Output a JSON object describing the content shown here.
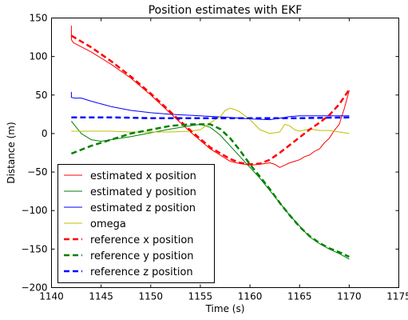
{
  "chart_data": {
    "type": "line",
    "title": "Position estimates with EKF",
    "xlabel": "Time (s)",
    "ylabel": "Distance (m)",
    "xlim": [
      1140,
      1175
    ],
    "ylim": [
      -200,
      150
    ],
    "xticks": [
      1140,
      1145,
      1150,
      1155,
      1160,
      1165,
      1170,
      1175
    ],
    "yticks": [
      -200,
      -150,
      -100,
      -50,
      0,
      50,
      100,
      150
    ],
    "xtick_labels": [
      "1140",
      "1145",
      "1150",
      "1155",
      "1160",
      "1165",
      "1170",
      "1175"
    ],
    "ytick_labels": [
      "−200",
      "−150",
      "−100",
      "−50",
      "0",
      "50",
      "100",
      "150"
    ],
    "grid": false,
    "legend_position": "bottom-left",
    "series": [
      {
        "name": "estimated x position",
        "color": "#ff0000",
        "dash": "solid",
        "x": [
          1142,
          1142,
          1142.2,
          1144,
          1146,
          1148,
          1150,
          1152,
          1154,
          1156,
          1158,
          1159,
          1160,
          1161,
          1162,
          1162.5,
          1163,
          1163.5,
          1164,
          1164.5,
          1165,
          1165.5,
          1166,
          1166.5,
          1167,
          1167.5,
          1168,
          1168.5,
          1169,
          1169.5,
          1170
        ],
        "y": [
          140,
          122,
          118,
          106,
          90,
          72,
          50,
          26,
          2,
          -20,
          -36,
          -39,
          -41,
          -40,
          -38,
          -40,
          -44,
          -41,
          -38,
          -36,
          -34,
          -30,
          -28,
          -23,
          -20,
          -12,
          -6,
          4,
          12,
          32,
          56
        ]
      },
      {
        "name": "estimated y position",
        "color": "#008000",
        "dash": "solid",
        "x": [
          1142,
          1142.5,
          1143,
          1144,
          1145,
          1146,
          1148,
          1150,
          1152,
          1154,
          1155,
          1156,
          1157,
          1158,
          1159,
          1160,
          1161,
          1162,
          1163,
          1164,
          1165,
          1166,
          1167,
          1168,
          1169,
          1170
        ],
        "y": [
          16,
          8,
          0,
          -8,
          -10,
          -8,
          -4,
          1,
          6,
          10,
          12,
          8,
          -2,
          -16,
          -30,
          -44,
          -58,
          -74,
          -90,
          -106,
          -120,
          -134,
          -143,
          -150,
          -156,
          -163
        ]
      },
      {
        "name": "estimated z position",
        "color": "#0000ff",
        "dash": "solid",
        "x": [
          1142,
          1142,
          1142.3,
          1143,
          1144,
          1146,
          1148,
          1150,
          1152,
          1155,
          1158,
          1160,
          1162,
          1163,
          1164,
          1165,
          1167,
          1170
        ],
        "y": [
          54,
          47,
          46,
          46,
          42,
          35,
          30,
          27,
          25,
          23,
          21,
          19,
          18,
          20,
          22,
          23,
          23,
          23
        ]
      },
      {
        "name": "omega",
        "color": "#bfbf00",
        "dash": "solid",
        "x": [
          1142,
          1144,
          1146,
          1148,
          1150,
          1152,
          1154,
          1155,
          1156,
          1157,
          1157.5,
          1158,
          1158.5,
          1159,
          1160,
          1161,
          1162,
          1163,
          1163.5,
          1164,
          1164.5,
          1165,
          1166,
          1167,
          1168,
          1169,
          1170
        ],
        "y": [
          3,
          3,
          3,
          2,
          2,
          2,
          3,
          5,
          14,
          22,
          30,
          33,
          31,
          28,
          18,
          5,
          0,
          2,
          12,
          10,
          5,
          3,
          6,
          4,
          4,
          2,
          0
        ]
      },
      {
        "name": "reference x position",
        "color": "#ff0000",
        "dash": "dashed",
        "x": [
          1142,
          1144,
          1146,
          1148,
          1150,
          1152,
          1154,
          1156,
          1158,
          1159,
          1160,
          1161,
          1162,
          1163,
          1164,
          1165,
          1166,
          1167,
          1168,
          1169,
          1170
        ],
        "y": [
          127,
          112,
          94,
          74,
          52,
          28,
          4,
          -18,
          -33,
          -38,
          -40,
          -39,
          -34,
          -25,
          -15,
          -5,
          5,
          14,
          24,
          38,
          57
        ]
      },
      {
        "name": "reference y position",
        "color": "#008000",
        "dash": "dashed",
        "x": [
          1142,
          1144,
          1146,
          1148,
          1150,
          1152,
          1154,
          1156,
          1157,
          1158,
          1159,
          1160,
          1161,
          1162,
          1163,
          1164,
          1165,
          1166,
          1167,
          1168,
          1169,
          1170
        ],
        "y": [
          -26,
          -16,
          -8,
          0,
          5,
          10,
          12,
          12,
          6,
          -6,
          -22,
          -40,
          -56,
          -72,
          -90,
          -106,
          -121,
          -133,
          -142,
          -149,
          -154,
          -160
        ]
      },
      {
        "name": "reference z position",
        "color": "#0000ff",
        "dash": "dashed",
        "x": [
          1142,
          1146,
          1150,
          1155,
          1160,
          1165,
          1170
        ],
        "y": [
          21,
          21,
          20,
          20,
          20,
          20,
          21
        ]
      }
    ]
  }
}
